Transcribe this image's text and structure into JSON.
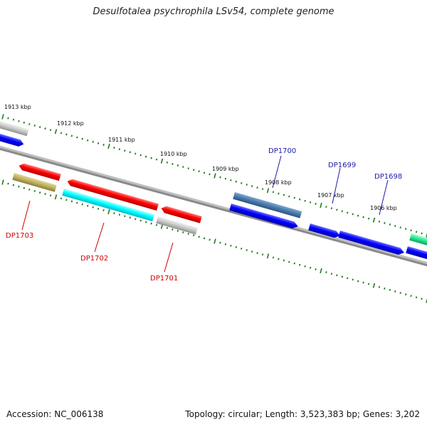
{
  "title": "Desulfotalea psychrophila LSv54, complete genome",
  "footer": {
    "accession": "Accession: NC_006138",
    "stats": "Topology: circular; Length: 3,523,383 bp; Genes: 3,202"
  },
  "scale_labels": [
    "1913 kbp",
    "1912 kbp",
    "1911 kbp",
    "1910 kbp",
    "1909 kbp",
    "1908 kbp",
    "1907 kbp",
    "1906 kbp"
  ],
  "gene_labels": [
    {
      "text": "DP1703",
      "strand": "minus"
    },
    {
      "text": "DP1702",
      "strand": "minus"
    },
    {
      "text": "DP1701",
      "strand": "minus"
    },
    {
      "text": "DP1700",
      "strand": "plus"
    },
    {
      "text": "DP1699",
      "strand": "plus"
    },
    {
      "text": "DP1698",
      "strand": "plus"
    }
  ],
  "colors": {
    "tick": "#1f7a1f",
    "backbone": "#777777",
    "label_plus": "#1a1aa8",
    "label_minus": "#cc0000"
  }
}
